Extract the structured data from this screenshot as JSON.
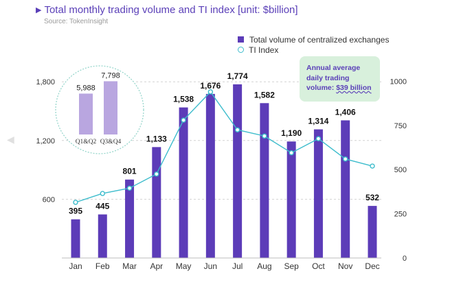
{
  "header": {
    "title": "Total monthly trading volume and TI index [unit: $billion]",
    "source": "Source: TokenInsight"
  },
  "legend": {
    "bar_label": "Total volume of centralized exchanges",
    "line_label": "TI Index"
  },
  "callout": {
    "line1": "Annual average",
    "line2": "daily trading",
    "line3_prefix": "volume: ",
    "line3_value": "$39 billion"
  },
  "colors": {
    "bar": "#5c3cb8",
    "line": "#3cbccc",
    "inset_bar": "#b9a6e0",
    "callout_bg": "#d8f0dc",
    "title": "#5a3fb8"
  },
  "chart_data": [
    {
      "type": "bar",
      "title": "Total monthly trading volume and TI index [unit: $billion]",
      "categories": [
        "Jan",
        "Feb",
        "Mar",
        "Apr",
        "May",
        "Jun",
        "Jul",
        "Aug",
        "Sep",
        "Oct",
        "Nov",
        "Dec"
      ],
      "series": [
        {
          "name": "Total volume of centralized exchanges",
          "type": "bar",
          "axis": "left",
          "values": [
            395,
            445,
            801,
            1133,
            1538,
            1676,
            1774,
            1582,
            1190,
            1314,
            1406,
            532
          ],
          "labels": [
            "395",
            "445",
            "801",
            "1,133",
            "1,538",
            "1,676",
            "1,774",
            "1,582",
            "1,190",
            "1,314",
            "1,406",
            "532"
          ]
        },
        {
          "name": "TI Index",
          "type": "line",
          "axis": "right",
          "values": [
            315,
            365,
            395,
            475,
            780,
            940,
            725,
            690,
            595,
            675,
            560,
            520
          ]
        }
      ],
      "left_axis": {
        "ticks": [
          600,
          1200,
          1800
        ],
        "tick_labels": [
          "600",
          "1,200",
          "1,800"
        ],
        "ylim": [
          0,
          2000
        ]
      },
      "right_axis": {
        "ticks": [
          0,
          250,
          500,
          750,
          1000
        ],
        "tick_labels": [
          "0",
          "250",
          "500",
          "750",
          "1000"
        ],
        "ylim": [
          0,
          1000
        ]
      },
      "grid": "dashed horizontal"
    },
    {
      "type": "bar",
      "categories": [
        "Q1&Q2",
        "Q3&Q4"
      ],
      "values": [
        5988,
        7798
      ],
      "labels": [
        "5,988",
        "7,798"
      ]
    }
  ]
}
